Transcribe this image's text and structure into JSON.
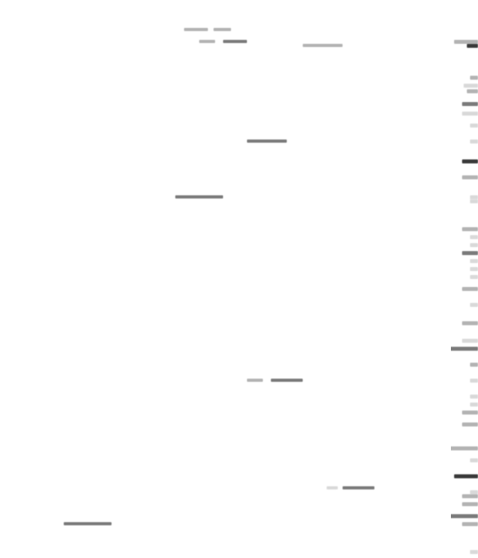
{
  "screen": {
    "background": "#ffffff",
    "text_legible": false
  },
  "colors": {
    "light": "#d9d9d9",
    "mid": "#b3b3b3",
    "dark": "#7a7a7a",
    "xdark": "#3a3a3a"
  }
}
